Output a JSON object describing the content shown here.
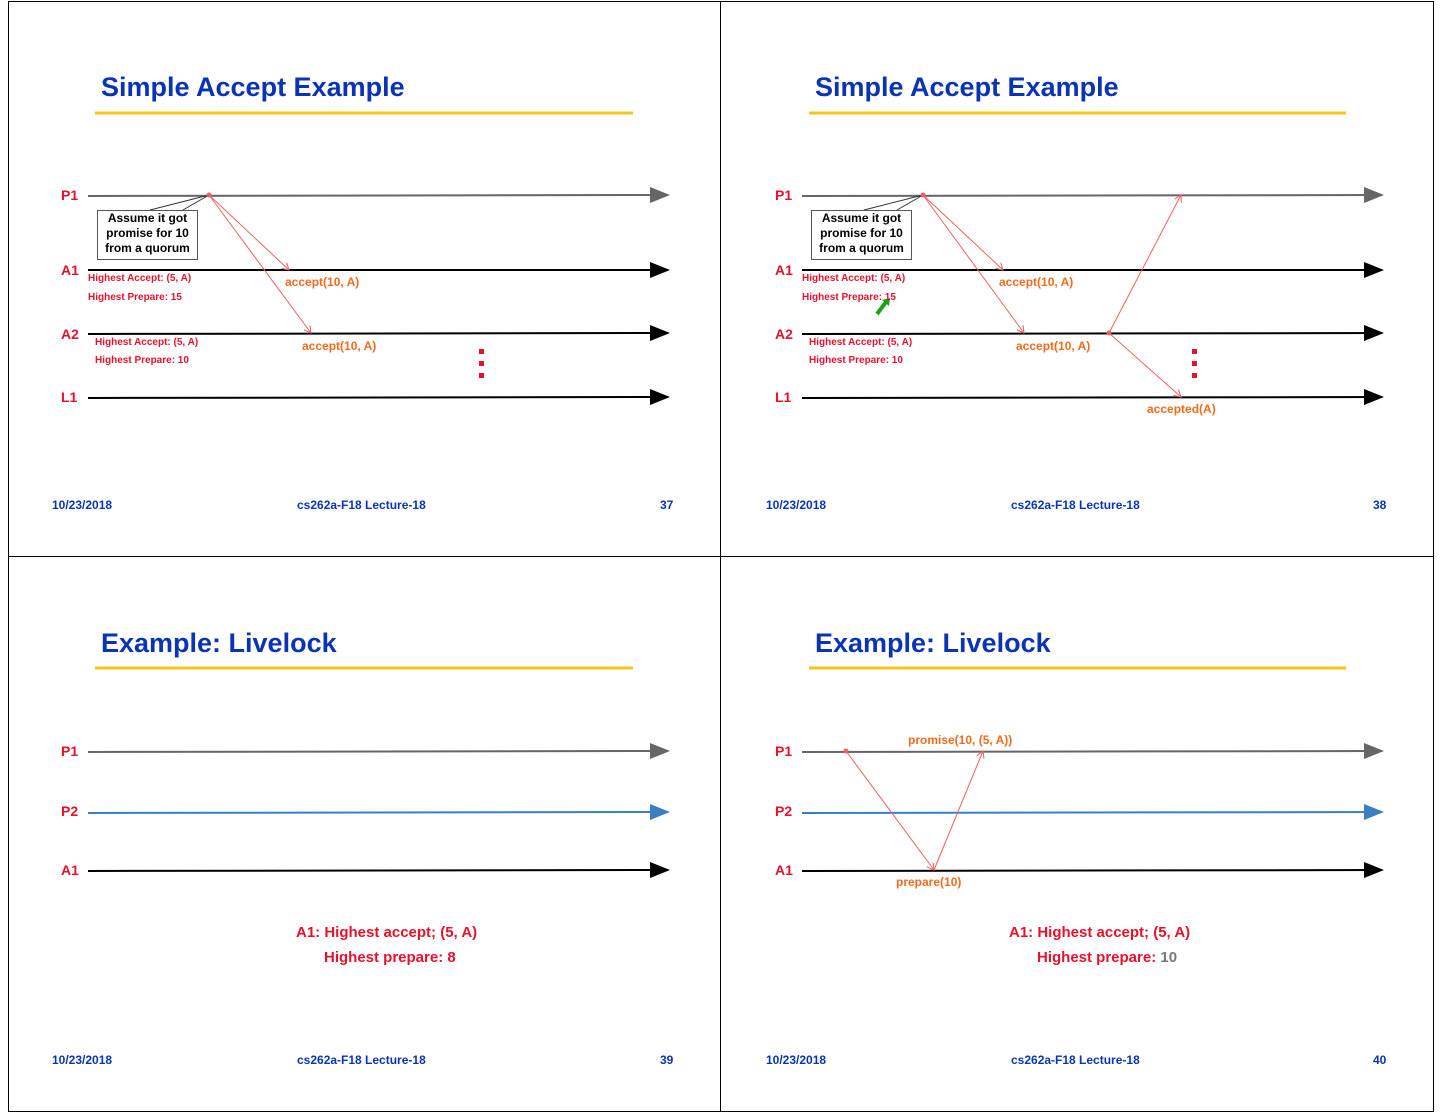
{
  "colors": {
    "title": "#0a34b4",
    "underline": "#f5c518",
    "lane_label": "#e8112d",
    "message": "#f26b1d",
    "arrow": "#f06060",
    "p2_line": "#3a7fc4"
  },
  "slides": [
    {
      "title": "Simple Accept Example",
      "lanes": [
        "P1",
        "A1",
        "A2",
        "L1"
      ],
      "callout": [
        "Assume it got",
        "promise for 10",
        "from a quorum"
      ],
      "a1_accept": "Highest Accept: (5, A)",
      "a1_prepare": "Highest Prepare: 15",
      "a2_accept": "Highest Accept: (5, A)",
      "a2_prepare": "Highest Prepare: 10",
      "msg1": "accept(10, A)",
      "msg2": "accept(10, A)",
      "date": "10/23/2018",
      "course": "cs262a-F18 Lecture-18",
      "page": "37"
    },
    {
      "title": "Simple Accept Example",
      "lanes": [
        "P1",
        "A1",
        "A2",
        "L1"
      ],
      "callout": [
        "Assume it got",
        "promise for 10",
        "from a quorum"
      ],
      "a1_accept": "Highest Accept: (5, A)",
      "a1_prepare": "Highest Prepare: 15",
      "a2_accept": "Highest Accept: (5, A)",
      "a2_prepare": "Highest Prepare: 10",
      "msg1": "accept(10, A)",
      "msg2": "accept(10, A)",
      "msg3": "accepted(A)",
      "date": "10/23/2018",
      "course": "cs262a-F18 Lecture-18",
      "page": "38"
    },
    {
      "title": "Example: Livelock",
      "lanes": [
        "P1",
        "P2",
        "A1"
      ],
      "note1": "A1: Highest accept; (5, A)",
      "note2_label": "Highest prepare:",
      "note2_value": "8",
      "date": "10/23/2018",
      "course": "cs262a-F18 Lecture-18",
      "page": "39"
    },
    {
      "title": "Example: Livelock",
      "lanes": [
        "P1",
        "P2",
        "A1"
      ],
      "msg1": "promise(10, (5, A))",
      "msg2": "prepare(10)",
      "note1": "A1: Highest accept; (5, A)",
      "note2_label": "Highest prepare:",
      "note2_value": "10",
      "date": "10/23/2018",
      "course": "cs262a-F18 Lecture-18",
      "page": "40"
    }
  ]
}
